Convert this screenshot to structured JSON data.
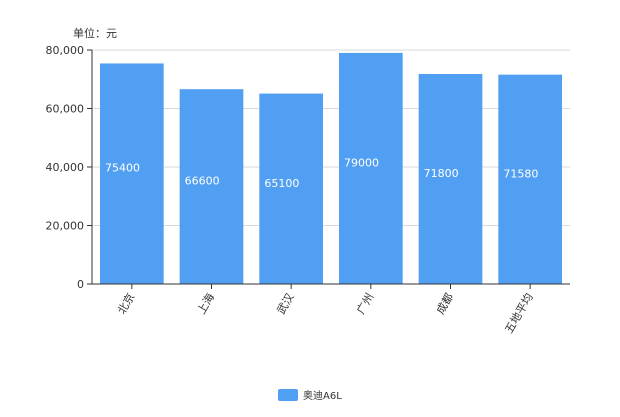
{
  "chart_data": {
    "type": "bar",
    "unit_label": "单位：元",
    "categories": [
      "北京",
      "上海",
      "武汉",
      "广州",
      "成都",
      "五地平均"
    ],
    "series": [
      {
        "name": "奥迪A6L",
        "values": [
          75400,
          66600,
          65100,
          79000,
          71800,
          71580
        ]
      }
    ],
    "data_labels": [
      "75400",
      "66600",
      "65100",
      "79000",
      "71800",
      "71580"
    ],
    "y_ticks": [
      "0",
      "20,000",
      "40,000",
      "60,000",
      "80,000"
    ],
    "y_tick_values": [
      0,
      20000,
      40000,
      60000,
      80000
    ],
    "ylim": [
      0,
      80000
    ],
    "grid": true,
    "legend_position": "bottom",
    "colors": {
      "bar": "#519ff2",
      "grid": "#d9d9d9",
      "axis": "#333333",
      "label": "#ffffff"
    }
  }
}
